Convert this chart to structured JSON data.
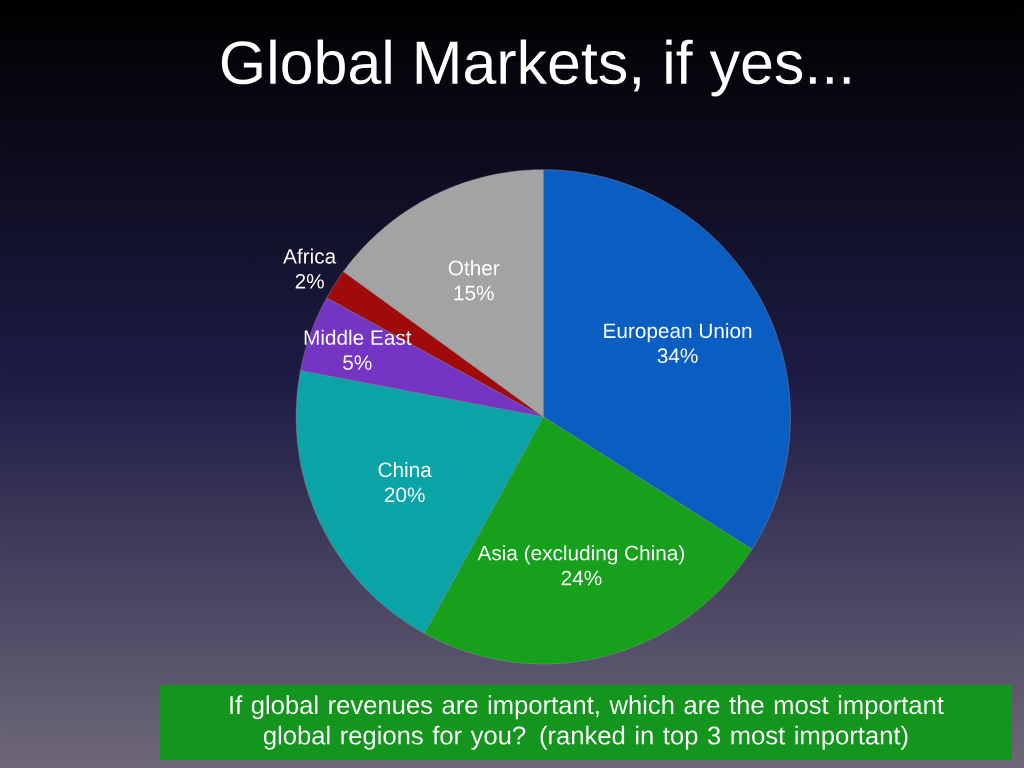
{
  "chart_data": {
    "type": "pie",
    "title": "Global Markets, if yes...",
    "categories": [
      "European Union",
      "Asia (excluding China)",
      "China",
      "Middle East",
      "Africa",
      "Other"
    ],
    "values": [
      34,
      24,
      20,
      5,
      2,
      15
    ],
    "value_labels": [
      "34%",
      "24%",
      "20%",
      "5%",
      "2%",
      "15%"
    ],
    "colors": [
      "#0a5ec2",
      "#16a01c",
      "#0aa3a6",
      "#7434c4",
      "#a00a0a",
      "#a3a3a3"
    ],
    "annotations": [
      "If global revenues  are important, which are the most important global regions for you? (ranked in top 3 most important)"
    ]
  }
}
